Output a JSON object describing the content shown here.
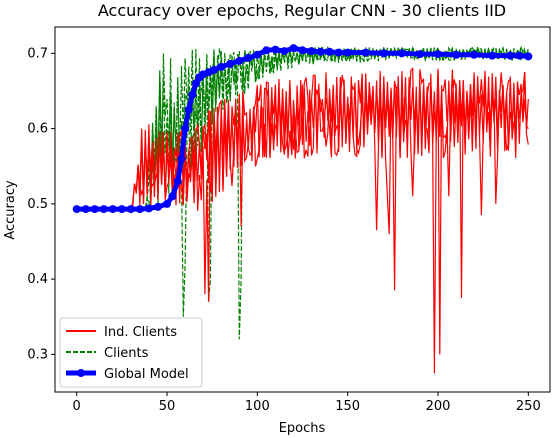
{
  "chart_data": {
    "type": "line",
    "title": "Accuracy over epochs, Regular CNN - 30 clients IID",
    "xlabel": "Epochs",
    "ylabel": "Accuracy",
    "xlim": [
      -12,
      262
    ],
    "ylim": [
      0.25,
      0.735
    ],
    "xticks": [
      0,
      50,
      100,
      150,
      200,
      250
    ],
    "xtick_labels": [
      "0",
      "50",
      "100",
      "150",
      "200",
      "250"
    ],
    "yticks": [
      0.3,
      0.4,
      0.5,
      0.6,
      0.7
    ],
    "ytick_labels": [
      "0.3",
      "0.4",
      "0.5",
      "0.6",
      "0.7"
    ],
    "grid": false,
    "legend_position": "lower-left",
    "colors": {
      "ind_clients": "#ff0000",
      "clients": "#008000",
      "global_model": "#0000ff"
    },
    "series": [
      {
        "name": "Ind. Clients",
        "style": "solid",
        "color": "#ff0000",
        "band": [
          [
            0,
            0.493,
            0.493
          ],
          [
            30,
            0.493,
            0.493
          ],
          [
            32,
            0.493,
            0.535
          ],
          [
            36,
            0.493,
            0.6
          ],
          [
            40,
            0.493,
            0.62
          ],
          [
            44,
            0.493,
            0.61
          ],
          [
            50,
            0.493,
            0.6
          ],
          [
            55,
            0.493,
            0.6
          ],
          [
            60,
            0.493,
            0.6
          ],
          [
            65,
            0.493,
            0.6
          ],
          [
            70,
            0.48,
            0.62
          ],
          [
            75,
            0.5,
            0.64
          ],
          [
            80,
            0.51,
            0.64
          ],
          [
            85,
            0.52,
            0.64
          ],
          [
            90,
            0.53,
            0.65
          ],
          [
            95,
            0.54,
            0.65
          ],
          [
            100,
            0.55,
            0.66
          ],
          [
            110,
            0.56,
            0.665
          ],
          [
            120,
            0.56,
            0.67
          ],
          [
            130,
            0.56,
            0.675
          ],
          [
            140,
            0.56,
            0.675
          ],
          [
            150,
            0.56,
            0.68
          ],
          [
            160,
            0.56,
            0.68
          ],
          [
            170,
            0.56,
            0.68
          ],
          [
            180,
            0.56,
            0.68
          ],
          [
            190,
            0.56,
            0.68
          ],
          [
            200,
            0.56,
            0.68
          ],
          [
            210,
            0.56,
            0.68
          ],
          [
            220,
            0.56,
            0.68
          ],
          [
            230,
            0.56,
            0.68
          ],
          [
            240,
            0.56,
            0.68
          ],
          [
            250,
            0.56,
            0.68
          ]
        ],
        "dips": [
          [
            71,
            0.38
          ],
          [
            73,
            0.37
          ],
          [
            91,
            0.47
          ],
          [
            166,
            0.465
          ],
          [
            172,
            0.51
          ],
          [
            173,
            0.46
          ],
          [
            176,
            0.385
          ],
          [
            186,
            0.51
          ],
          [
            198,
            0.275
          ],
          [
            201,
            0.3
          ],
          [
            206,
            0.51
          ],
          [
            213,
            0.375
          ],
          [
            224,
            0.485
          ],
          [
            232,
            0.5
          ]
        ]
      },
      {
        "name": "Clients",
        "style": "dashed",
        "color": "#008000",
        "band": [
          [
            0,
            0.493,
            0.493
          ],
          [
            38,
            0.493,
            0.493
          ],
          [
            40,
            0.493,
            0.56
          ],
          [
            43,
            0.493,
            0.66
          ],
          [
            45,
            0.493,
            0.705
          ],
          [
            50,
            0.493,
            0.705
          ],
          [
            55,
            0.5,
            0.705
          ],
          [
            60,
            0.52,
            0.705
          ],
          [
            65,
            0.55,
            0.706
          ],
          [
            70,
            0.57,
            0.706
          ],
          [
            75,
            0.59,
            0.706
          ],
          [
            80,
            0.62,
            0.707
          ],
          [
            90,
            0.64,
            0.707
          ],
          [
            100,
            0.66,
            0.707
          ],
          [
            110,
            0.675,
            0.707
          ],
          [
            120,
            0.68,
            0.708
          ],
          [
            130,
            0.685,
            0.708
          ],
          [
            150,
            0.688,
            0.708
          ],
          [
            170,
            0.69,
            0.708
          ],
          [
            190,
            0.69,
            0.708
          ],
          [
            210,
            0.69,
            0.708
          ],
          [
            230,
            0.69,
            0.708
          ],
          [
            250,
            0.69,
            0.708
          ]
        ],
        "dips": [
          [
            59,
            0.35
          ],
          [
            60,
            0.42
          ],
          [
            73,
            0.37
          ],
          [
            74,
            0.4
          ],
          [
            90,
            0.32
          ],
          [
            91,
            0.4
          ]
        ]
      },
      {
        "name": "Global Model",
        "style": "solid-markers",
        "color": "#0000ff",
        "points": [
          [
            0,
            0.493
          ],
          [
            5,
            0.493
          ],
          [
            10,
            0.493
          ],
          [
            15,
            0.493
          ],
          [
            20,
            0.493
          ],
          [
            25,
            0.493
          ],
          [
            30,
            0.493
          ],
          [
            35,
            0.493
          ],
          [
            40,
            0.494
          ],
          [
            45,
            0.496
          ],
          [
            50,
            0.5
          ],
          [
            53,
            0.51
          ],
          [
            56,
            0.53
          ],
          [
            58,
            0.56
          ],
          [
            60,
            0.6
          ],
          [
            62,
            0.625
          ],
          [
            64,
            0.645
          ],
          [
            66,
            0.66
          ],
          [
            68,
            0.668
          ],
          [
            70,
            0.672
          ],
          [
            73,
            0.675
          ],
          [
            76,
            0.678
          ],
          [
            80,
            0.682
          ],
          [
            85,
            0.686
          ],
          [
            90,
            0.69
          ],
          [
            95,
            0.694
          ],
          [
            100,
            0.698
          ],
          [
            105,
            0.704
          ],
          [
            110,
            0.705
          ],
          [
            115,
            0.703
          ],
          [
            120,
            0.707
          ],
          [
            125,
            0.704
          ],
          [
            130,
            0.703
          ],
          [
            135,
            0.702
          ],
          [
            140,
            0.702
          ],
          [
            145,
            0.701
          ],
          [
            150,
            0.701
          ],
          [
            160,
            0.701
          ],
          [
            170,
            0.7
          ],
          [
            180,
            0.7
          ],
          [
            190,
            0.699
          ],
          [
            200,
            0.699
          ],
          [
            210,
            0.698
          ],
          [
            220,
            0.698
          ],
          [
            230,
            0.697
          ],
          [
            240,
            0.697
          ],
          [
            245,
            0.697
          ],
          [
            250,
            0.696
          ]
        ]
      }
    ]
  }
}
